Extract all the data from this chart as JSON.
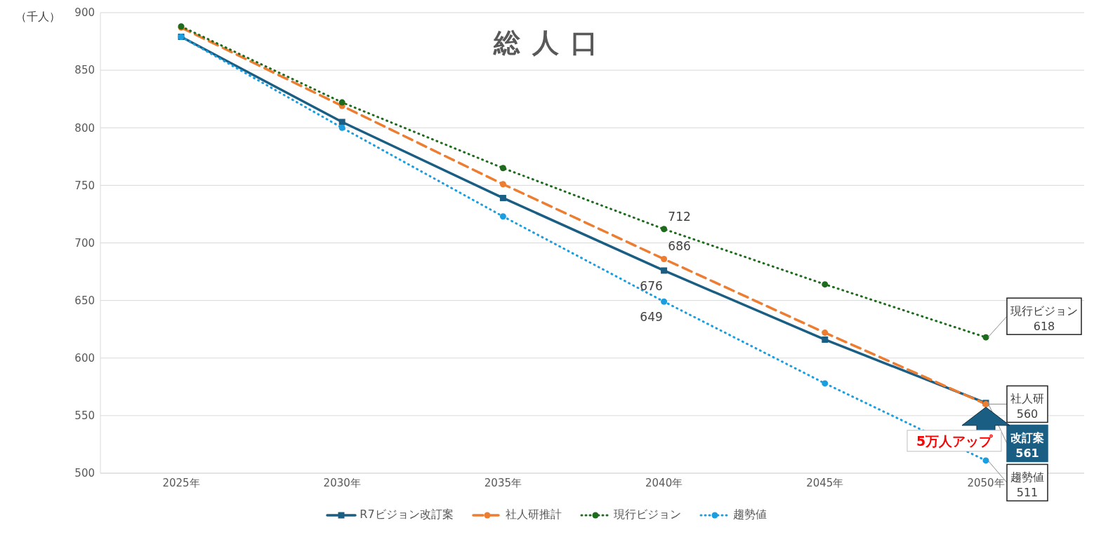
{
  "chart_data": {
    "type": "line",
    "title": "総 人 口",
    "ylabel": "（千人）",
    "categories": [
      "2025年",
      "2030年",
      "2035年",
      "2040年",
      "2045年",
      "2050年"
    ],
    "ylim": [
      500,
      900
    ],
    "yticks": [
      500,
      550,
      600,
      650,
      700,
      750,
      800,
      850,
      900
    ],
    "grid": "y",
    "legend": "bottom",
    "series": [
      {
        "name": "R7ビジョン改訂案",
        "color": "#1b5e84",
        "marker": "square",
        "line_style": "solid",
        "values": [
          879,
          805,
          739,
          676,
          616,
          561
        ],
        "value_labels": [
          null,
          null,
          null,
          "676",
          null,
          "改訂案\n561"
        ]
      },
      {
        "name": "社人研推計",
        "color": "#ed7d31",
        "marker": "circle",
        "line_style": "dashed",
        "values": [
          887,
          819,
          751,
          686,
          622,
          560
        ],
        "value_labels": [
          null,
          null,
          null,
          "686",
          null,
          "社人研\n560"
        ]
      },
      {
        "name": "現行ビジョン",
        "color": "#1e6b1e",
        "marker": "circle",
        "line_style": "dotted",
        "values": [
          888,
          822,
          765,
          712,
          664,
          618
        ],
        "value_labels": [
          null,
          null,
          null,
          "712",
          null,
          "現行ビジョン\n618"
        ]
      },
      {
        "name": "趨勢値",
        "color": "#1a9ee0",
        "marker": "circle",
        "line_style": "dotted",
        "values": [
          879,
          800,
          723,
          649,
          578,
          511
        ],
        "value_labels": [
          null,
          null,
          null,
          "649",
          null,
          "趨勢値\n511"
        ]
      }
    ],
    "annotations": [
      {
        "text": "5万人アップ",
        "x": "2050年",
        "y": 561
      }
    ]
  }
}
